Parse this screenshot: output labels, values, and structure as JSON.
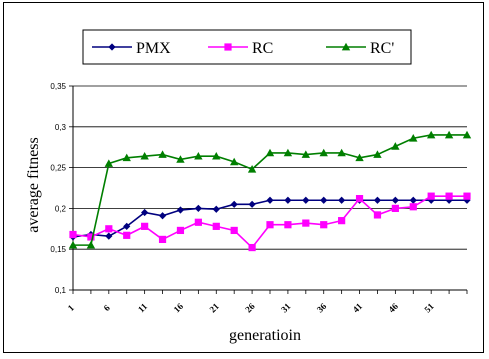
{
  "chart_data": {
    "type": "line",
    "xlabel": "generatioin",
    "ylabel": "average fitness",
    "ylim": [
      0.1,
      0.35
    ],
    "y_ticks": [
      "0,1",
      "0,15",
      "0,2",
      "0,25",
      "0,3",
      "0,35"
    ],
    "x_tick_labels": [
      "1",
      "6",
      "11",
      "16",
      "21",
      "26",
      "31",
      "36",
      "41",
      "46",
      "51"
    ],
    "grid": "horizontal",
    "legend_position": "top",
    "x": [
      1,
      2,
      3,
      4,
      5,
      6,
      7,
      8,
      9,
      10,
      11,
      12,
      13,
      14,
      15,
      16,
      17,
      18,
      19,
      20,
      21,
      22,
      23
    ],
    "series": [
      {
        "name": "PMX",
        "color": "#00007f",
        "marker": "diamond",
        "values": [
          0.165,
          0.168,
          0.166,
          0.178,
          0.195,
          0.191,
          0.198,
          0.2,
          0.199,
          0.205,
          0.205,
          0.21,
          0.21,
          0.21,
          0.21,
          0.21,
          0.21,
          0.21,
          0.21,
          0.21,
          0.21,
          0.21,
          0.21
        ]
      },
      {
        "name": "RC",
        "color": "#ff00ff",
        "marker": "square",
        "values": [
          0.168,
          0.165,
          0.175,
          0.167,
          0.178,
          0.162,
          0.173,
          0.183,
          0.178,
          0.173,
          0.152,
          0.18,
          0.18,
          0.182,
          0.18,
          0.185,
          0.212,
          0.192,
          0.2,
          0.202,
          0.215,
          0.215,
          0.215
        ]
      },
      {
        "name": "RC'",
        "color": "#007f00",
        "marker": "triangle",
        "values": [
          0.155,
          0.155,
          0.255,
          0.262,
          0.264,
          0.266,
          0.26,
          0.264,
          0.264,
          0.257,
          0.248,
          0.268,
          0.268,
          0.266,
          0.268,
          0.268,
          0.262,
          0.266,
          0.276,
          0.286,
          0.29,
          0.29,
          0.29
        ]
      }
    ]
  }
}
